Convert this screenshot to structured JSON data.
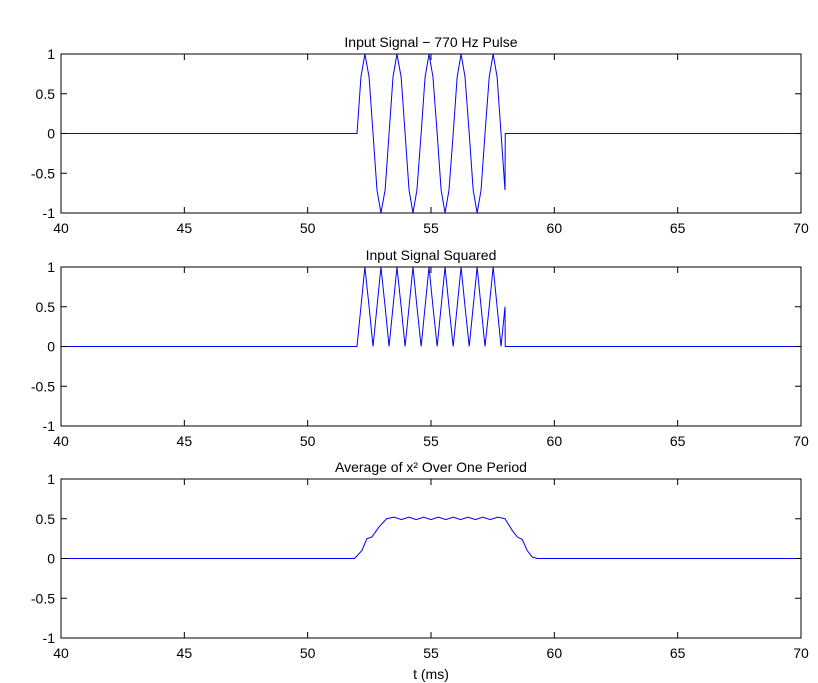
{
  "chart_data": [
    {
      "type": "line",
      "title": "Input Signal − 770 Hz Pulse",
      "x": [
        40,
        52.0,
        52.16,
        52.32,
        52.49,
        52.65,
        52.81,
        52.97,
        53.14,
        53.3,
        53.46,
        53.62,
        53.79,
        53.95,
        54.11,
        54.27,
        54.43,
        54.6,
        54.76,
        54.92,
        55.08,
        55.25,
        55.41,
        55.57,
        55.73,
        55.9,
        56.06,
        56.22,
        56.38,
        56.55,
        56.71,
        56.87,
        57.03,
        57.19,
        57.36,
        57.52,
        57.68,
        57.84,
        58.0,
        58.01,
        70
      ],
      "values": [
        0,
        0,
        0.71,
        1,
        0.71,
        0,
        -0.71,
        -1,
        -0.71,
        0,
        0.71,
        1,
        0.71,
        0,
        -0.71,
        -1,
        -0.71,
        0,
        0.71,
        1,
        0.71,
        0,
        -0.71,
        -1,
        -0.71,
        0,
        0.71,
        1,
        0.71,
        0,
        -0.71,
        -1,
        -0.71,
        0,
        0.71,
        1,
        0.71,
        0,
        -0.71,
        0,
        0
      ],
      "color": "#0000ff",
      "xlim": [
        40,
        70
      ],
      "ylim": [
        -1,
        1
      ],
      "xticks": [
        40,
        45,
        50,
        55,
        60,
        65,
        70
      ],
      "yticks": [
        -1,
        -0.5,
        0,
        0.5,
        1
      ],
      "grid": false
    },
    {
      "type": "line",
      "title": "Input Signal Squared",
      "x": [
        40,
        52.0,
        52.16,
        52.32,
        52.49,
        52.65,
        52.81,
        52.97,
        53.14,
        53.3,
        53.46,
        53.62,
        53.79,
        53.95,
        54.11,
        54.27,
        54.43,
        54.6,
        54.76,
        54.92,
        55.08,
        55.25,
        55.41,
        55.57,
        55.73,
        55.9,
        56.06,
        56.22,
        56.38,
        56.55,
        56.71,
        56.87,
        57.03,
        57.19,
        57.36,
        57.52,
        57.68,
        57.84,
        58.0,
        58.01,
        70
      ],
      "values": [
        0,
        0,
        0.5,
        1,
        0.5,
        0,
        0.5,
        1,
        0.5,
        0,
        0.5,
        1,
        0.5,
        0,
        0.5,
        1,
        0.5,
        0,
        0.5,
        1,
        0.5,
        0,
        0.5,
        1,
        0.5,
        0,
        0.5,
        1,
        0.5,
        0,
        0.5,
        1,
        0.5,
        0,
        0.5,
        1,
        0.5,
        0,
        0.5,
        0,
        0
      ],
      "color": "#0000ff",
      "xlim": [
        40,
        70
      ],
      "ylim": [
        -1,
        1
      ],
      "xticks": [
        40,
        45,
        50,
        55,
        60,
        65,
        70
      ],
      "yticks": [
        -1,
        -0.5,
        0,
        0.5,
        1
      ],
      "grid": false
    },
    {
      "type": "line",
      "title": "Average of x² Over One Period",
      "x_label": "t (ms)",
      "x": [
        40,
        51.9,
        52.2,
        52.4,
        52.6,
        52.9,
        53.2,
        53.5,
        53.8,
        54.1,
        54.4,
        54.7,
        55.0,
        55.3,
        55.6,
        55.9,
        56.2,
        56.5,
        56.8,
        57.1,
        57.4,
        57.7,
        58.0,
        58.3,
        58.5,
        58.7,
        58.9,
        59.1,
        59.3,
        70
      ],
      "values": [
        0,
        0,
        0.1,
        0.25,
        0.27,
        0.4,
        0.5,
        0.52,
        0.49,
        0.52,
        0.49,
        0.52,
        0.49,
        0.52,
        0.49,
        0.52,
        0.49,
        0.52,
        0.49,
        0.52,
        0.49,
        0.52,
        0.5,
        0.35,
        0.27,
        0.24,
        0.1,
        0.02,
        0,
        0
      ],
      "color": "#0000ff",
      "xlim": [
        40,
        70
      ],
      "ylim": [
        -1,
        1
      ],
      "xticks": [
        40,
        45,
        50,
        55,
        60,
        65,
        70
      ],
      "yticks": [
        -1,
        -0.5,
        0,
        0.5,
        1
      ],
      "grid": false
    }
  ]
}
